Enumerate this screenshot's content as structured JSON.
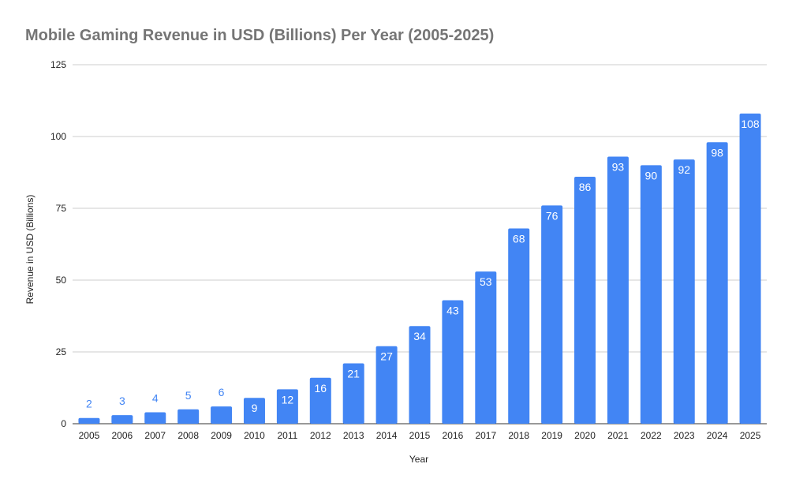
{
  "chart_data": {
    "type": "bar",
    "title": "Mobile Gaming Revenue in USD (Billions) Per Year (2005-2025)",
    "xlabel": "Year",
    "ylabel": "Revenue in USD (Billions)",
    "ylim": [
      0,
      125
    ],
    "yticks": [
      0,
      25,
      50,
      75,
      100,
      125
    ],
    "grid": true,
    "legend": "none",
    "bar_color": "#4285f4",
    "categories": [
      "2005",
      "2006",
      "2007",
      "2008",
      "2009",
      "2010",
      "2011",
      "2012",
      "2013",
      "2014",
      "2015",
      "2016",
      "2017",
      "2018",
      "2019",
      "2020",
      "2021",
      "2022",
      "2023",
      "2024",
      "2025"
    ],
    "values": [
      2,
      3,
      4,
      5,
      6,
      9,
      12,
      16,
      21,
      27,
      34,
      43,
      53,
      68,
      76,
      86,
      93,
      90,
      92,
      98,
      108
    ]
  }
}
